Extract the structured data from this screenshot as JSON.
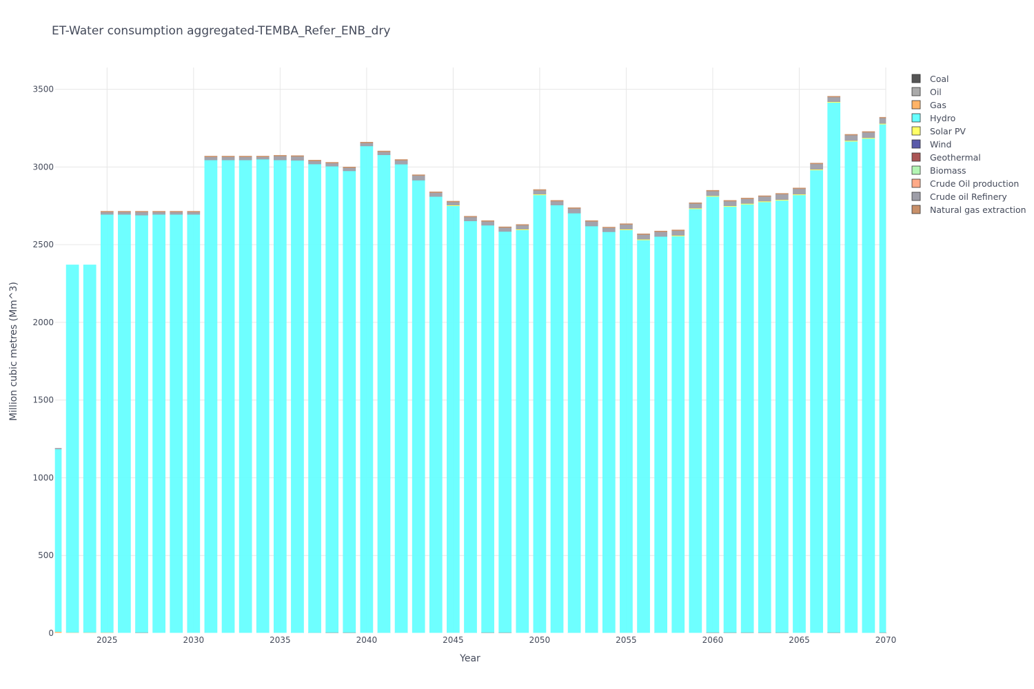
{
  "chart_data": {
    "type": "bar",
    "stacked": true,
    "title": "ET-Water consumption aggregated-TEMBA_Refer_ENB_dry",
    "xlabel": "Year",
    "ylabel": "Million cubic metres (Mm^3)",
    "xlim": [
      2022,
      2070
    ],
    "ylim": [
      0,
      3640
    ],
    "xticks": [
      2025,
      2030,
      2035,
      2040,
      2045,
      2050,
      2055,
      2060,
      2065,
      2070
    ],
    "yticks": [
      0,
      500,
      1000,
      1500,
      2000,
      2500,
      3000,
      3500
    ],
    "grid": true,
    "legend_position": "right",
    "categories": [
      2022,
      2023,
      2024,
      2025,
      2026,
      2027,
      2028,
      2029,
      2030,
      2031,
      2032,
      2033,
      2034,
      2035,
      2036,
      2037,
      2038,
      2039,
      2040,
      2041,
      2042,
      2043,
      2044,
      2045,
      2046,
      2047,
      2048,
      2049,
      2050,
      2051,
      2052,
      2053,
      2054,
      2055,
      2056,
      2057,
      2058,
      2059,
      2060,
      2061,
      2062,
      2063,
      2064,
      2065,
      2066,
      2067,
      2068,
      2069,
      2070
    ],
    "series": [
      {
        "name": "Coal",
        "color": "#555555",
        "values": [
          0,
          0,
          0,
          0,
          0,
          5,
          0,
          0,
          0,
          0,
          0,
          0,
          0,
          0,
          3,
          4,
          5,
          5,
          0,
          3,
          3,
          0,
          0,
          0,
          3,
          5,
          5,
          0,
          0,
          0,
          3,
          0,
          3,
          0,
          0,
          3,
          0,
          0,
          5,
          5,
          5,
          5,
          5,
          0,
          0,
          5,
          0,
          3,
          5
        ]
      },
      {
        "name": "Oil",
        "color": "#aaaaaa",
        "values": [
          0,
          0,
          0,
          0,
          0,
          0,
          0,
          0,
          0,
          0,
          0,
          0,
          0,
          0,
          0,
          0,
          0,
          0,
          0,
          0,
          0,
          0,
          0,
          0,
          0,
          0,
          0,
          0,
          0,
          0,
          0,
          0,
          0,
          0,
          0,
          0,
          0,
          0,
          0,
          0,
          0,
          0,
          0,
          0,
          0,
          0,
          0,
          0,
          0
        ]
      },
      {
        "name": "Gas",
        "color": "#ffb366",
        "values": [
          10,
          5,
          5,
          5,
          0,
          0,
          0,
          0,
          0,
          0,
          0,
          0,
          0,
          0,
          0,
          0,
          0,
          0,
          0,
          0,
          0,
          0,
          0,
          0,
          0,
          0,
          0,
          0,
          0,
          0,
          0,
          0,
          0,
          0,
          0,
          0,
          0,
          0,
          0,
          0,
          0,
          0,
          0,
          0,
          0,
          0,
          0,
          0,
          0
        ]
      },
      {
        "name": "Hydro",
        "color": "#66ffff",
        "values": [
          1175,
          2365,
          2365,
          2690,
          2695,
          2685,
          2695,
          2695,
          2695,
          3045,
          3045,
          3045,
          3050,
          3045,
          3040,
          3015,
          3000,
          2970,
          3135,
          3075,
          3015,
          2915,
          2810,
          2750,
          2650,
          2620,
          2580,
          2595,
          2820,
          2755,
          2700,
          2620,
          2580,
          2595,
          2530,
          2550,
          2555,
          2730,
          2805,
          2740,
          2755,
          2770,
          2780,
          2820,
          2980,
          3410,
          3165,
          3180,
          3270
        ]
      },
      {
        "name": "Solar PV",
        "color": "#ffff66",
        "values": [
          0,
          0,
          0,
          0,
          0,
          0,
          0,
          0,
          0,
          0,
          0,
          0,
          0,
          0,
          0,
          0,
          0,
          0,
          0,
          0,
          0,
          0,
          0,
          5,
          0,
          0,
          0,
          5,
          5,
          0,
          0,
          0,
          0,
          5,
          5,
          0,
          5,
          5,
          5,
          5,
          5,
          5,
          5,
          5,
          5,
          5,
          5,
          5,
          5
        ]
      },
      {
        "name": "Wind",
        "color": "#5a5aaa",
        "values": [
          0,
          0,
          0,
          0,
          0,
          0,
          0,
          0,
          0,
          0,
          0,
          0,
          0,
          0,
          0,
          0,
          0,
          0,
          0,
          0,
          0,
          0,
          0,
          0,
          0,
          0,
          0,
          0,
          0,
          0,
          0,
          0,
          0,
          0,
          0,
          0,
          0,
          0,
          0,
          0,
          0,
          0,
          0,
          0,
          0,
          0,
          0,
          0,
          0
        ]
      },
      {
        "name": "Geothermal",
        "color": "#aa5555",
        "values": [
          0,
          0,
          0,
          0,
          0,
          0,
          0,
          0,
          0,
          0,
          0,
          0,
          0,
          0,
          0,
          0,
          0,
          0,
          0,
          0,
          0,
          0,
          0,
          0,
          0,
          0,
          0,
          0,
          0,
          0,
          0,
          0,
          0,
          0,
          0,
          0,
          0,
          0,
          0,
          0,
          0,
          0,
          0,
          0,
          0,
          0,
          0,
          0,
          0
        ]
      },
      {
        "name": "Biomass",
        "color": "#b3f5b3",
        "values": [
          0,
          0,
          0,
          0,
          0,
          0,
          0,
          0,
          0,
          0,
          0,
          0,
          0,
          0,
          0,
          0,
          0,
          0,
          0,
          0,
          0,
          0,
          0,
          0,
          0,
          0,
          0,
          0,
          0,
          0,
          0,
          0,
          0,
          0,
          0,
          0,
          0,
          0,
          0,
          0,
          0,
          0,
          0,
          0,
          0,
          0,
          0,
          0,
          0
        ]
      },
      {
        "name": "Crude Oil production",
        "color": "#ffaa88",
        "values": [
          0,
          0,
          0,
          0,
          0,
          0,
          0,
          0,
          0,
          0,
          0,
          0,
          0,
          0,
          0,
          0,
          0,
          0,
          0,
          0,
          0,
          0,
          0,
          0,
          0,
          0,
          0,
          0,
          0,
          0,
          0,
          0,
          0,
          0,
          0,
          0,
          0,
          0,
          0,
          0,
          0,
          0,
          0,
          0,
          0,
          0,
          0,
          0,
          0
        ]
      },
      {
        "name": "Crude oil Refinery",
        "color": "#9e9ea8",
        "values": [
          5,
          0,
          0,
          15,
          15,
          20,
          15,
          15,
          15,
          20,
          20,
          20,
          15,
          25,
          25,
          20,
          20,
          20,
          20,
          20,
          25,
          30,
          25,
          20,
          25,
          25,
          25,
          25,
          25,
          25,
          30,
          30,
          25,
          30,
          30,
          30,
          30,
          30,
          30,
          30,
          30,
          30,
          35,
          35,
          35,
          30,
          35,
          35,
          35
        ]
      },
      {
        "name": "Natural gas extraction",
        "color": "#c8906a",
        "values": [
          0,
          0,
          0,
          5,
          5,
          5,
          5,
          5,
          5,
          5,
          5,
          5,
          5,
          5,
          5,
          5,
          5,
          5,
          5,
          5,
          5,
          5,
          5,
          5,
          5,
          5,
          5,
          5,
          5,
          5,
          5,
          5,
          5,
          5,
          5,
          5,
          5,
          5,
          5,
          5,
          5,
          5,
          5,
          5,
          5,
          5,
          5,
          5,
          5
        ]
      }
    ]
  }
}
